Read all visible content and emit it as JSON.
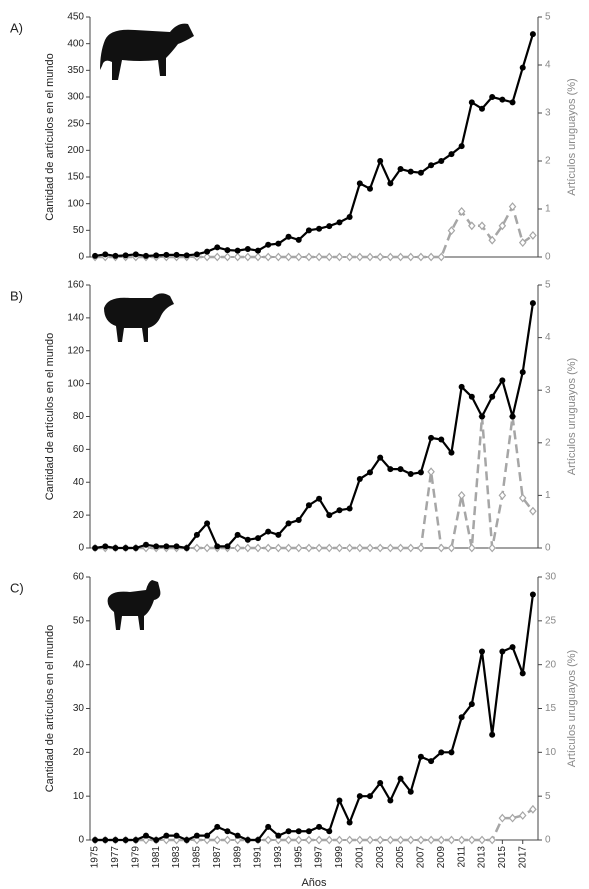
{
  "chart_data": [
    {
      "type": "line",
      "title": "A)",
      "ylabel": "Cantidad de artículos en el mundo",
      "y2label": "Artículos uruguayos (%)",
      "x": [
        1975,
        1976,
        1977,
        1978,
        1979,
        1980,
        1981,
        1982,
        1983,
        1984,
        1985,
        1986,
        1987,
        1988,
        1989,
        1990,
        1991,
        1992,
        1993,
        1994,
        1995,
        1996,
        1997,
        1998,
        1999,
        2000,
        2001,
        2002,
        2003,
        2004,
        2005,
        2006,
        2007,
        2008,
        2009,
        2010,
        2011,
        2012,
        2013,
        2014,
        2015,
        2016,
        2017,
        2018
      ],
      "xlim": [
        1974.5,
        2018.5
      ],
      "ylim": [
        0,
        450
      ],
      "yticks": [
        0,
        50,
        100,
        150,
        200,
        250,
        300,
        350,
        400,
        450
      ],
      "y2lim": [
        0,
        5
      ],
      "y2ticks": [
        0,
        1,
        2,
        3,
        4,
        5
      ],
      "series": [
        {
          "color": "#000000",
          "marker": "circle",
          "linestyle": "solid",
          "values": [
            2,
            5,
            2,
            3,
            5,
            2,
            3,
            4,
            4,
            3,
            5,
            10,
            18,
            13,
            12,
            15,
            12,
            23,
            25,
            38,
            32,
            50,
            53,
            58,
            65,
            75,
            138,
            128,
            180,
            138,
            165,
            160,
            158,
            172,
            180,
            193,
            208,
            290,
            278,
            300,
            295,
            290,
            355,
            418
          ]
        },
        {
          "color": "#a6a6a6",
          "marker": "diamond",
          "linestyle": "dashed",
          "axis": "y2",
          "values": [
            0,
            0,
            0,
            0,
            0,
            0,
            0,
            0,
            0,
            0,
            0,
            0,
            0,
            0,
            0,
            0,
            0,
            0,
            0,
            0,
            0,
            0,
            0,
            0,
            0,
            0,
            0,
            0,
            0,
            0,
            0,
            0,
            0,
            0,
            0,
            0.55,
            0.95,
            0.65,
            0.65,
            0.35,
            0.65,
            1.05,
            0.3,
            0.45
          ]
        }
      ]
    },
    {
      "type": "line",
      "title": "B)",
      "ylabel": "Cantidad de artículos en el mundo",
      "y2label": "Artículos uruguayos (%)",
      "x": [
        1975,
        1976,
        1977,
        1978,
        1979,
        1980,
        1981,
        1982,
        1983,
        1984,
        1985,
        1986,
        1987,
        1988,
        1989,
        1990,
        1991,
        1992,
        1993,
        1994,
        1995,
        1996,
        1997,
        1998,
        1999,
        2000,
        2001,
        2002,
        2003,
        2004,
        2005,
        2006,
        2007,
        2008,
        2009,
        2010,
        2011,
        2012,
        2013,
        2014,
        2015,
        2016,
        2017,
        2018
      ],
      "xlim": [
        1974.5,
        2018.5
      ],
      "ylim": [
        0,
        160
      ],
      "yticks": [
        0,
        20,
        40,
        60,
        80,
        100,
        120,
        140,
        160
      ],
      "y2lim": [
        0,
        5
      ],
      "y2ticks": [
        0,
        1,
        2,
        3,
        4,
        5
      ],
      "series": [
        {
          "color": "#000000",
          "marker": "circle",
          "linestyle": "solid",
          "values": [
            0,
            1,
            0,
            0,
            0,
            2,
            1,
            1,
            1,
            0,
            8,
            15,
            1,
            1,
            8,
            5,
            6,
            10,
            8,
            15,
            17,
            26,
            30,
            20,
            23,
            24,
            42,
            46,
            55,
            48,
            48,
            45,
            46,
            67,
            66,
            58,
            98,
            92,
            80,
            92,
            102,
            80,
            107,
            149
          ]
        },
        {
          "color": "#a6a6a6",
          "marker": "diamond",
          "linestyle": "dashed",
          "axis": "y2",
          "values": [
            0,
            0,
            0,
            0,
            0,
            0,
            0,
            0,
            0,
            0,
            0,
            0,
            0,
            0,
            0,
            0,
            0,
            0,
            0,
            0,
            0,
            0,
            0,
            0,
            0,
            0,
            0,
            0,
            0,
            0,
            0,
            0,
            0,
            1.45,
            0,
            0,
            1.0,
            0,
            2.5,
            0,
            1.0,
            2.5,
            0.95,
            0.7
          ]
        }
      ]
    },
    {
      "type": "line",
      "title": "C)",
      "ylabel": "Cantidad de artículos en el mundo",
      "y2label": "Artículos uruguayos (%)",
      "xlabel": "Años",
      "x": [
        1975,
        1976,
        1977,
        1978,
        1979,
        1980,
        1981,
        1982,
        1983,
        1984,
        1985,
        1986,
        1987,
        1988,
        1989,
        1990,
        1991,
        1992,
        1993,
        1994,
        1995,
        1996,
        1997,
        1998,
        1999,
        2000,
        2001,
        2002,
        2003,
        2004,
        2005,
        2006,
        2007,
        2008,
        2009,
        2010,
        2011,
        2012,
        2013,
        2014,
        2015,
        2016,
        2017,
        2018
      ],
      "xlim": [
        1974.5,
        2018.5
      ],
      "xticks": [
        1975,
        1977,
        1979,
        1981,
        1983,
        1985,
        1987,
        1989,
        1991,
        1993,
        1995,
        1997,
        1999,
        2001,
        2003,
        2005,
        2007,
        2009,
        2011,
        2013,
        2015,
        2017
      ],
      "ylim": [
        0,
        60
      ],
      "yticks": [
        0,
        10,
        20,
        30,
        40,
        50,
        60
      ],
      "y2lim": [
        0,
        30
      ],
      "y2ticks": [
        0,
        5,
        10,
        15,
        20,
        25,
        30
      ],
      "series": [
        {
          "color": "#000000",
          "marker": "circle",
          "linestyle": "solid",
          "values": [
            0,
            0,
            0,
            0,
            0,
            1,
            0,
            1,
            1,
            0,
            1,
            1,
            3,
            2,
            1,
            0,
            0,
            3,
            1,
            2,
            2,
            2,
            3,
            2,
            9,
            4,
            10,
            10,
            13,
            9,
            14,
            11,
            19,
            18,
            20,
            20,
            28,
            31,
            43,
            24,
            43,
            44,
            38,
            56
          ]
        },
        {
          "color": "#a6a6a6",
          "marker": "diamond",
          "linestyle": "dashed",
          "axis": "y2",
          "values": [
            0,
            0,
            0,
            0,
            0,
            0,
            0,
            0,
            0,
            0,
            0,
            0,
            0,
            0,
            0,
            0,
            0,
            0,
            0,
            0,
            0,
            0,
            0,
            0,
            0,
            0,
            0,
            0,
            0,
            0,
            0,
            0,
            0,
            0,
            0,
            0,
            0,
            0,
            0,
            0,
            2.5,
            2.5,
            2.8,
            3.5
          ]
        }
      ]
    }
  ]
}
